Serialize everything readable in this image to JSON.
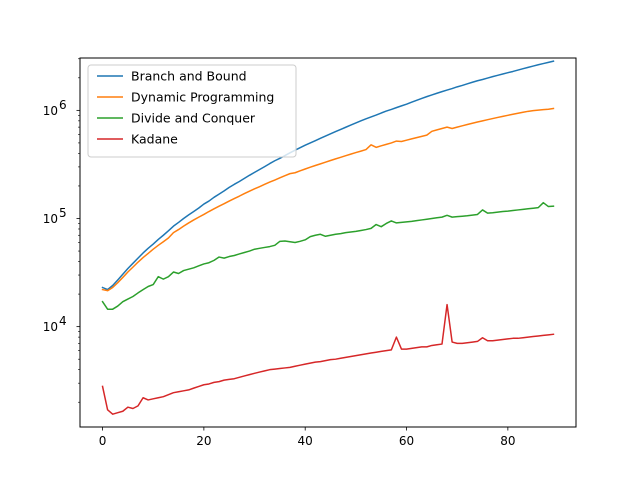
{
  "chart_data": {
    "type": "line",
    "title": "",
    "xlabel": "",
    "ylabel": "",
    "yscale": "log",
    "xlim": [
      -4.45,
      93.45
    ],
    "ylim": [
      1180,
      3050000
    ],
    "grid": false,
    "legend_position": "top-left",
    "x_ticks": [
      0,
      20,
      40,
      60,
      80
    ],
    "x_tick_labels": [
      "0",
      "20",
      "40",
      "60",
      "80"
    ],
    "y_ticks": [
      10000,
      100000,
      1000000
    ],
    "y_tick_labels": [
      {
        "base": "10",
        "exp": "4"
      },
      {
        "base": "10",
        "exp": "5"
      },
      {
        "base": "10",
        "exp": "6"
      }
    ],
    "x": [
      0,
      1,
      2,
      3,
      4,
      5,
      6,
      7,
      8,
      9,
      10,
      11,
      12,
      13,
      14,
      15,
      16,
      17,
      18,
      19,
      20,
      21,
      22,
      23,
      24,
      25,
      26,
      27,
      28,
      29,
      30,
      31,
      32,
      33,
      34,
      35,
      36,
      37,
      38,
      39,
      40,
      41,
      42,
      43,
      44,
      45,
      46,
      47,
      48,
      49,
      50,
      51,
      52,
      53,
      54,
      55,
      56,
      57,
      58,
      59,
      60,
      61,
      62,
      63,
      64,
      65,
      66,
      67,
      68,
      69,
      70,
      71,
      72,
      73,
      74,
      75,
      76,
      77,
      78,
      79,
      80,
      81,
      82,
      83,
      84,
      85,
      86,
      87,
      88,
      89
    ],
    "series": [
      {
        "name": "Branch and Bound",
        "color": "#1f77b4",
        "values": [
          23000,
          22000,
          24000,
          27000,
          30500,
          34500,
          38500,
          43000,
          48000,
          53000,
          58000,
          64000,
          70000,
          77000,
          85000,
          92000,
          100000,
          108000,
          116000,
          125000,
          136000,
          145000,
          157000,
          168000,
          180000,
          194000,
          207000,
          220000,
          235000,
          251000,
          267000,
          284000,
          302000,
          322000,
          342000,
          360000,
          382000,
          405000,
          428000,
          452000,
          476000,
          500000,
          525000,
          552000,
          579000,
          607000,
          636000,
          667000,
          698000,
          731000,
          765000,
          800000,
          835000,
          870000,
          905000,
          945000,
          985000,
          1020000,
          1060000,
          1100000,
          1140000,
          1190000,
          1240000,
          1290000,
          1340000,
          1390000,
          1440000,
          1490000,
          1540000,
          1590000,
          1650000,
          1700000,
          1760000,
          1820000,
          1880000,
          1930000,
          1990000,
          2050000,
          2110000,
          2170000,
          2230000,
          2290000,
          2360000,
          2430000,
          2500000,
          2570000,
          2640000,
          2710000,
          2780000,
          2850000
        ]
      },
      {
        "name": "Dynamic Programming",
        "color": "#ff7f0e",
        "values": [
          22000,
          21500,
          23000,
          25500,
          28500,
          32000,
          35500,
          39500,
          43500,
          47500,
          52000,
          56500,
          61000,
          66000,
          74000,
          79000,
          85000,
          91000,
          97000,
          103000,
          109000,
          116000,
          123000,
          130000,
          137000,
          145000,
          153000,
          161000,
          170000,
          179000,
          188000,
          197000,
          207000,
          217000,
          227000,
          238000,
          249000,
          260000,
          265000,
          276000,
          287000,
          298000,
          309000,
          320000,
          332000,
          344000,
          356000,
          368000,
          381000,
          394000,
          407000,
          420000,
          434000,
          480000,
          455000,
          470000,
          485000,
          500000,
          520000,
          515000,
          530000,
          545000,
          560000,
          575000,
          590000,
          640000,
          660000,
          680000,
          700000,
          680000,
          700000,
          720000,
          740000,
          760000,
          780000,
          800000,
          820000,
          840000,
          860000,
          880000,
          900000,
          920000,
          940000,
          960000,
          980000,
          995000,
          1005000,
          1015000,
          1025000,
          1040000
        ]
      },
      {
        "name": "Divide and Conquer",
        "color": "#2ca02c",
        "values": [
          17000,
          14500,
          14500,
          15500,
          17000,
          18000,
          19000,
          20500,
          22000,
          23500,
          24500,
          29000,
          27500,
          29000,
          32000,
          31000,
          33000,
          34000,
          35000,
          36500,
          38000,
          39000,
          41000,
          44000,
          43000,
          44500,
          45500,
          47000,
          48500,
          50000,
          52000,
          53000,
          54000,
          55000,
          56500,
          61500,
          62000,
          61000,
          60000,
          61500,
          63500,
          68000,
          70000,
          71500,
          68500,
          70000,
          71500,
          72500,
          74000,
          75000,
          76000,
          77500,
          79000,
          81000,
          88000,
          84000,
          90000,
          95000,
          91000,
          92000,
          93000,
          94000,
          95500,
          97000,
          98500,
          100000,
          101500,
          103000,
          107000,
          103000,
          104000,
          105000,
          106000,
          107500,
          109000,
          120000,
          112000,
          113000,
          114500,
          116000,
          117000,
          118500,
          120000,
          121500,
          123000,
          124500,
          126000,
          140000,
          129000,
          130000
        ]
      },
      {
        "name": "Kadane",
        "color": "#d62728",
        "values": [
          2800,
          1700,
          1550,
          1600,
          1650,
          1800,
          1750,
          1850,
          2200,
          2100,
          2150,
          2200,
          2250,
          2350,
          2450,
          2500,
          2550,
          2600,
          2700,
          2800,
          2900,
          2950,
          3050,
          3100,
          3200,
          3250,
          3300,
          3400,
          3500,
          3600,
          3700,
          3800,
          3900,
          4000,
          4050,
          4100,
          4150,
          4200,
          4300,
          4400,
          4500,
          4600,
          4700,
          4750,
          4850,
          4950,
          5000,
          5100,
          5200,
          5300,
          5400,
          5500,
          5600,
          5700,
          5800,
          5900,
          6000,
          6100,
          8000,
          6200,
          6200,
          6300,
          6400,
          6500,
          6500,
          6700,
          6800,
          6900,
          16000,
          7200,
          7000,
          7000,
          7100,
          7200,
          7300,
          7900,
          7400,
          7400,
          7500,
          7600,
          7700,
          7800,
          7800,
          7900,
          8000,
          8100,
          8200,
          8300,
          8400,
          8500
        ]
      }
    ]
  }
}
